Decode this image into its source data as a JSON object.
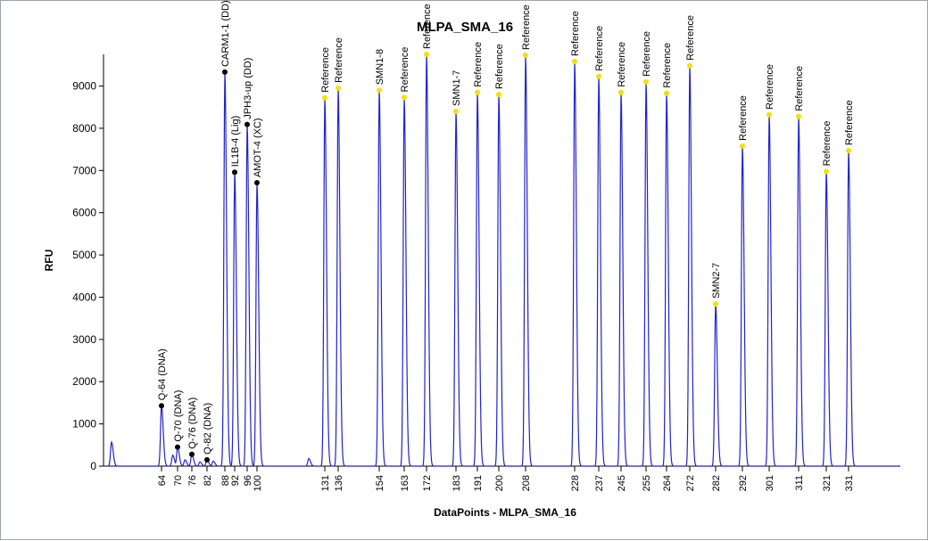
{
  "chart_data": {
    "type": "line",
    "title": "MLPA_SMA_16",
    "xlabel": "DataPoints - MLPA_SMA_16",
    "ylabel": "RFU",
    "ylim": [
      0,
      9750
    ],
    "yticks": [
      0,
      1000,
      2000,
      3000,
      4000,
      5000,
      6000,
      7000,
      8000,
      9000
    ],
    "xlim": [
      40,
      350
    ],
    "xticks": [
      64,
      70,
      76,
      82,
      88,
      92,
      96,
      100,
      131,
      136,
      154,
      163,
      172,
      183,
      191,
      200,
      208,
      228,
      237,
      245,
      255,
      264,
      272,
      282,
      292,
      301,
      311,
      321,
      331
    ],
    "line_color": "#2222cc",
    "peaks": [
      {
        "x": 64,
        "y": 1430,
        "label": "Q-64 (DNA)",
        "marker": "black"
      },
      {
        "x": 70,
        "y": 450,
        "label": "Q-70 (DNA)",
        "marker": "black"
      },
      {
        "x": 76,
        "y": 280,
        "label": "Q-76 (DNA)",
        "marker": "black"
      },
      {
        "x": 82,
        "y": 150,
        "label": "Q-82 (DNA)",
        "marker": "black"
      },
      {
        "x": 88,
        "y": 9330,
        "label": "CARM1-1 (DD)",
        "marker": "black"
      },
      {
        "x": 92,
        "y": 6960,
        "label": "IL1B-4 (Lig)",
        "marker": "black"
      },
      {
        "x": 96,
        "y": 8090,
        "label": "JPH3-up (DD)",
        "marker": "black"
      },
      {
        "x": 100,
        "y": 6710,
        "label": "AMOT-4 (XC)",
        "marker": "black"
      },
      {
        "x": 131,
        "y": 8720,
        "label": "Reference",
        "marker": "yellow"
      },
      {
        "x": 136,
        "y": 8950,
        "label": "Reference",
        "marker": "yellow"
      },
      {
        "x": 154,
        "y": 8900,
        "label": "SMN1-8",
        "marker": "yellow"
      },
      {
        "x": 163,
        "y": 8730,
        "label": "Reference",
        "marker": "yellow"
      },
      {
        "x": 172,
        "y": 9750,
        "label": "Reference",
        "marker": "yellow"
      },
      {
        "x": 183,
        "y": 8400,
        "label": "SMN1-7",
        "marker": "yellow"
      },
      {
        "x": 191,
        "y": 8850,
        "label": "Reference",
        "marker": "yellow"
      },
      {
        "x": 200,
        "y": 8800,
        "label": "Reference",
        "marker": "yellow"
      },
      {
        "x": 208,
        "y": 9730,
        "label": "Reference",
        "marker": "yellow"
      },
      {
        "x": 228,
        "y": 9580,
        "label": "Reference",
        "marker": "yellow"
      },
      {
        "x": 237,
        "y": 9230,
        "label": "Reference",
        "marker": "yellow"
      },
      {
        "x": 245,
        "y": 8850,
        "label": "Reference",
        "marker": "yellow"
      },
      {
        "x": 255,
        "y": 9100,
        "label": "Reference",
        "marker": "yellow"
      },
      {
        "x": 264,
        "y": 8830,
        "label": "Reference",
        "marker": "yellow"
      },
      {
        "x": 272,
        "y": 9480,
        "label": "Reference",
        "marker": "yellow"
      },
      {
        "x": 282,
        "y": 3840,
        "label": "SMN2-7",
        "marker": "yellow"
      },
      {
        "x": 292,
        "y": 7580,
        "label": "Reference",
        "marker": "yellow"
      },
      {
        "x": 301,
        "y": 8320,
        "label": "Reference",
        "marker": "yellow"
      },
      {
        "x": 311,
        "y": 8280,
        "label": "Reference",
        "marker": "yellow"
      },
      {
        "x": 321,
        "y": 6980,
        "label": "Reference",
        "marker": "yellow"
      },
      {
        "x": 331,
        "y": 7470,
        "label": "Reference",
        "marker": "yellow"
      }
    ],
    "minor_peaks": [
      {
        "x": 40.4,
        "y": 570
      },
      {
        "x": 68.2,
        "y": 260
      },
      {
        "x": 73.1,
        "y": 150
      },
      {
        "x": 79.2,
        "y": 100
      },
      {
        "x": 84.1,
        "y": 120
      },
      {
        "x": 123.0,
        "y": 180
      }
    ]
  }
}
